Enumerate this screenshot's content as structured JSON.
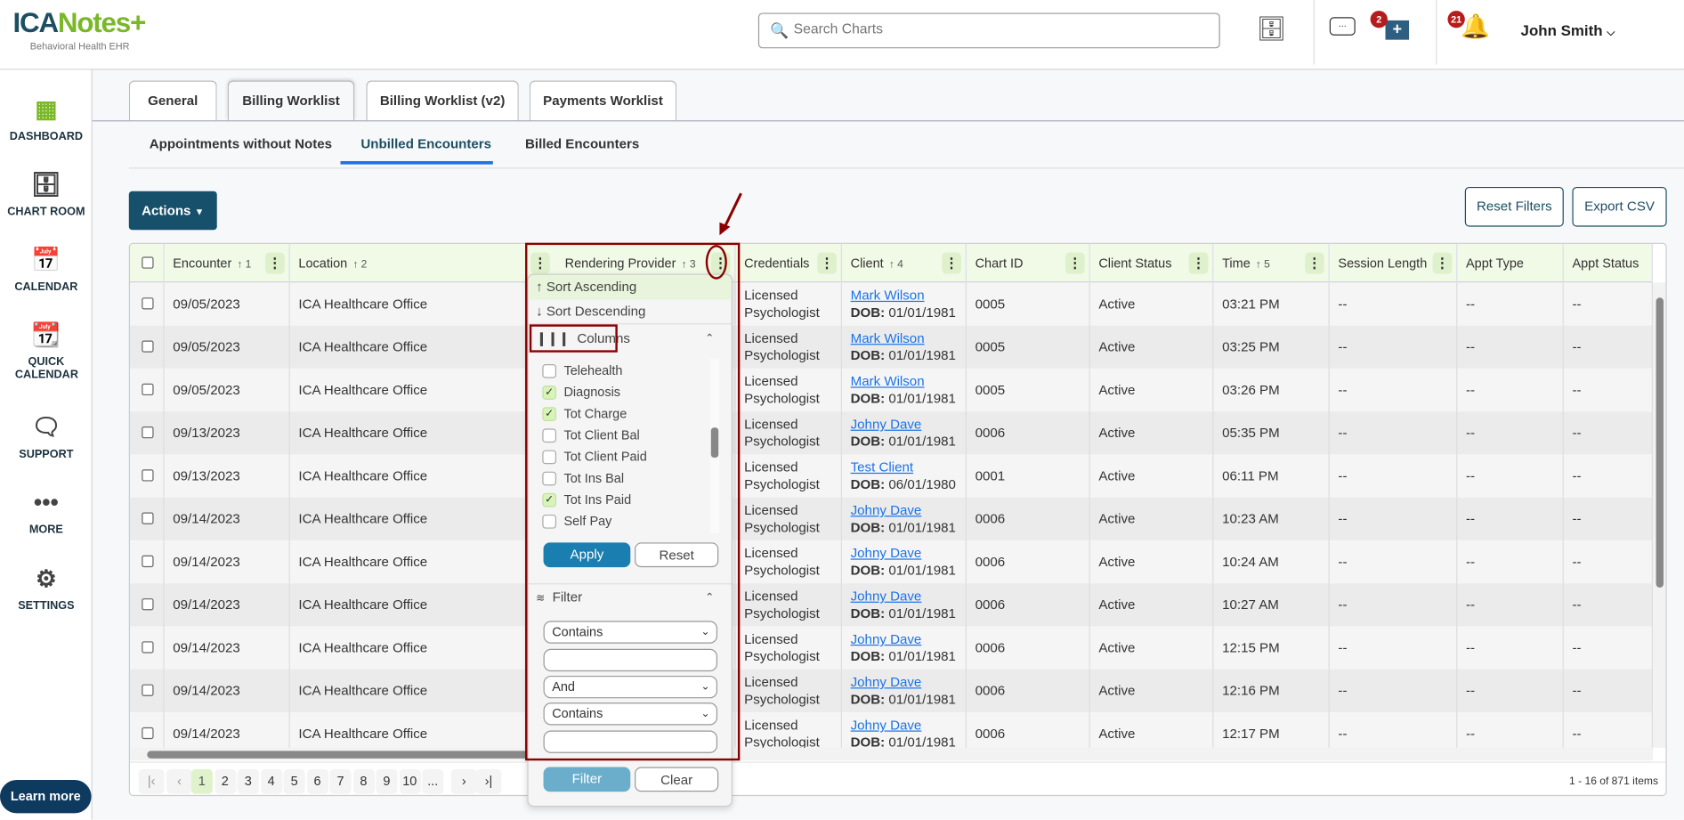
{
  "header": {
    "logo_ica": "ICA",
    "logo_notes": "Notes+",
    "logo_sub": "Behavioral Health EHR",
    "search_placeholder": "Search Charts",
    "messages_badge": "2",
    "notifications_badge": "21",
    "user_name": "John Smith"
  },
  "sidebar": {
    "items": [
      {
        "label": "DASHBOARD",
        "icon": "dashboard-icon"
      },
      {
        "label": "CHART ROOM",
        "icon": "file-cabinet-icon"
      },
      {
        "label": "CALENDAR",
        "icon": "calendar-icon"
      },
      {
        "label": "QUICK CALENDAR",
        "icon": "quick-calendar-icon"
      },
      {
        "label": "SUPPORT",
        "icon": "support-chat-icon"
      },
      {
        "label": "MORE",
        "icon": "more-dots-icon"
      },
      {
        "label": "SETTINGS",
        "icon": "gear-icon"
      }
    ],
    "learn_more": "Learn more"
  },
  "tabs": [
    "General",
    "Billing Worklist",
    "Billing Worklist (v2)",
    "Payments Worklist"
  ],
  "active_tab": "Billing Worklist",
  "subtabs": [
    "Appointments without Notes",
    "Unbilled Encounters",
    "Billed Encounters"
  ],
  "active_subtab": "Unbilled Encounters",
  "toolbar": {
    "actions": "Actions",
    "reset_filters": "Reset Filters",
    "export_csv": "Export CSV"
  },
  "grid": {
    "columns": [
      {
        "label": "Encounter",
        "sort": "↑ 1"
      },
      {
        "label": "Location",
        "sort": "↑ 2"
      },
      {
        "label": "Rendering Provider",
        "sort": "↑ 3"
      },
      {
        "label": "Credentials",
        "sort": ""
      },
      {
        "label": "Client",
        "sort": "↑ 4"
      },
      {
        "label": "Chart ID",
        "sort": ""
      },
      {
        "label": "Client Status",
        "sort": ""
      },
      {
        "label": "Time",
        "sort": "↑ 5"
      },
      {
        "label": "Session Length",
        "sort": ""
      },
      {
        "label": "Appt Type",
        "sort": ""
      },
      {
        "label": "Appt Status",
        "sort": ""
      }
    ],
    "dob_label": "DOB:",
    "rows": [
      {
        "encounter": "09/05/2023",
        "location": "ICA Healthcare Office",
        "credentials": [
          "Licensed",
          "Psychologist"
        ],
        "client": "Mark Wilson",
        "dob": "01/01/1981",
        "chart_id": "0005",
        "status": "Active",
        "time": "03:21 PM",
        "session_length": "--",
        "appt_type": "--",
        "appt_status": "--"
      },
      {
        "encounter": "09/05/2023",
        "location": "ICA Healthcare Office",
        "credentials": [
          "Licensed",
          "Psychologist"
        ],
        "client": "Mark Wilson",
        "dob": "01/01/1981",
        "chart_id": "0005",
        "status": "Active",
        "time": "03:25 PM",
        "session_length": "--",
        "appt_type": "--",
        "appt_status": "--"
      },
      {
        "encounter": "09/05/2023",
        "location": "ICA Healthcare Office",
        "credentials": [
          "Licensed",
          "Psychologist"
        ],
        "client": "Mark Wilson",
        "dob": "01/01/1981",
        "chart_id": "0005",
        "status": "Active",
        "time": "03:26 PM",
        "session_length": "--",
        "appt_type": "--",
        "appt_status": "--"
      },
      {
        "encounter": "09/13/2023",
        "location": "ICA Healthcare Office",
        "credentials": [
          "Licensed",
          "Psychologist"
        ],
        "client": "Johny Dave",
        "dob": "01/01/1981",
        "chart_id": "0006",
        "status": "Active",
        "time": "05:35 PM",
        "session_length": "--",
        "appt_type": "--",
        "appt_status": "--"
      },
      {
        "encounter": "09/13/2023",
        "location": "ICA Healthcare Office",
        "credentials": [
          "Licensed",
          "Psychologist"
        ],
        "client": "Test Client",
        "dob": "06/01/1980",
        "chart_id": "0001",
        "status": "Active",
        "time": "06:11 PM",
        "session_length": "--",
        "appt_type": "--",
        "appt_status": "--"
      },
      {
        "encounter": "09/14/2023",
        "location": "ICA Healthcare Office",
        "credentials": [
          "Licensed",
          "Psychologist"
        ],
        "client": "Johny Dave",
        "dob": "01/01/1981",
        "chart_id": "0006",
        "status": "Active",
        "time": "10:23 AM",
        "session_length": "--",
        "appt_type": "--",
        "appt_status": "--"
      },
      {
        "encounter": "09/14/2023",
        "location": "ICA Healthcare Office",
        "credentials": [
          "Licensed",
          "Psychologist"
        ],
        "client": "Johny Dave",
        "dob": "01/01/1981",
        "chart_id": "0006",
        "status": "Active",
        "time": "10:24 AM",
        "session_length": "--",
        "appt_type": "--",
        "appt_status": "--"
      },
      {
        "encounter": "09/14/2023",
        "location": "ICA Healthcare Office",
        "credentials": [
          "Licensed",
          "Psychologist"
        ],
        "client": "Johny Dave",
        "dob": "01/01/1981",
        "chart_id": "0006",
        "status": "Active",
        "time": "10:27 AM",
        "session_length": "--",
        "appt_type": "--",
        "appt_status": "--"
      },
      {
        "encounter": "09/14/2023",
        "location": "ICA Healthcare Office",
        "credentials": [
          "Licensed",
          "Psychologist"
        ],
        "client": "Johny Dave",
        "dob": "01/01/1981",
        "chart_id": "0006",
        "status": "Active",
        "time": "12:15 PM",
        "session_length": "--",
        "appt_type": "--",
        "appt_status": "--"
      },
      {
        "encounter": "09/14/2023",
        "location": "ICA Healthcare Office",
        "credentials": [
          "Licensed",
          "Psychologist"
        ],
        "client": "Johny Dave",
        "dob": "01/01/1981",
        "chart_id": "0006",
        "status": "Active",
        "time": "12:16 PM",
        "session_length": "--",
        "appt_type": "--",
        "appt_status": "--"
      },
      {
        "encounter": "09/14/2023",
        "location": "ICA Healthcare Office",
        "credentials": [
          "Licensed",
          "Psychologist"
        ],
        "client": "Johny Dave",
        "dob": "01/01/1981",
        "chart_id": "0006",
        "status": "Active",
        "time": "12:17 PM",
        "session_length": "--",
        "appt_type": "--",
        "appt_status": "--"
      }
    ],
    "pagination": {
      "pages": [
        "1",
        "2",
        "3",
        "4",
        "5",
        "6",
        "7",
        "8",
        "9",
        "10",
        "..."
      ],
      "current": "1",
      "info": "1 - 16 of 871 items"
    }
  },
  "column_menu": {
    "sort_ascending": "Sort Ascending",
    "sort_descending": "Sort Descending",
    "columns_label": "Columns",
    "column_options": [
      {
        "label": "Telehealth",
        "checked": false
      },
      {
        "label": "Diagnosis",
        "checked": true
      },
      {
        "label": "Tot Charge",
        "checked": true
      },
      {
        "label": "Tot Client Bal",
        "checked": false
      },
      {
        "label": "Tot Client Paid",
        "checked": false
      },
      {
        "label": "Tot Ins Bal",
        "checked": false
      },
      {
        "label": "Tot Ins Paid",
        "checked": true
      },
      {
        "label": "Self Pay",
        "checked": false
      }
    ],
    "apply": "Apply",
    "reset": "Reset",
    "filter_label": "Filter",
    "filter_operator_1": "Contains",
    "filter_value_1": "",
    "filter_logic": "And",
    "filter_operator_2": "Contains",
    "filter_value_2": "",
    "filter_button": "Filter",
    "clear_button": "Clear"
  },
  "colors": {
    "brand_navy": "#17506b",
    "brand_green": "#7ab829",
    "header_green": "#f1fae6",
    "link": "#1a73e8",
    "annotation": "#8b0000",
    "apply": "#1a7fb0"
  }
}
